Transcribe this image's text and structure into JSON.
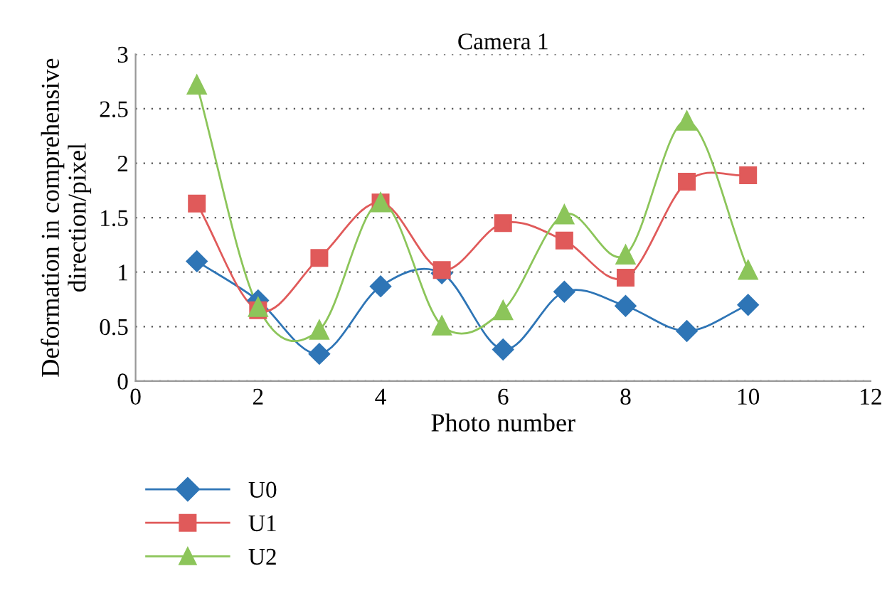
{
  "chart_data": {
    "type": "line",
    "title": "Camera 1",
    "xlabel": "Photo number",
    "ylabel": "Deformation in comprehensive\ndirection/pixel",
    "x": [
      1,
      2,
      3,
      4,
      5,
      6,
      7,
      8,
      9,
      10
    ],
    "series": [
      {
        "name": "U0",
        "color": "#2e75b6",
        "marker": "diamond",
        "values": [
          1.1,
          0.74,
          0.25,
          0.87,
          0.99,
          0.29,
          0.82,
          0.69,
          0.46,
          0.7
        ]
      },
      {
        "name": "U1",
        "color": "#e05a5a",
        "marker": "square",
        "values": [
          1.63,
          0.65,
          1.13,
          1.64,
          1.02,
          1.45,
          1.29,
          0.95,
          1.83,
          1.89
        ]
      },
      {
        "name": "U2",
        "color": "#8cc55a",
        "marker": "triangle",
        "values": [
          2.72,
          0.68,
          0.47,
          1.64,
          0.51,
          0.65,
          1.53,
          1.16,
          2.39,
          1.02
        ]
      }
    ],
    "xlim": [
      0,
      12
    ],
    "xticks": [
      0,
      2,
      4,
      6,
      8,
      10,
      12
    ],
    "ylim": [
      0,
      3
    ],
    "yticks": [
      0,
      0.5,
      1,
      1.5,
      2,
      2.5,
      3
    ],
    "grid": "y",
    "legend": "bottom left",
    "line_style": "solid"
  }
}
